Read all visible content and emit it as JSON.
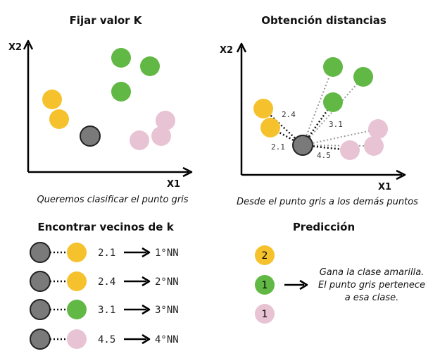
{
  "panels": {
    "fijar": {
      "title": "Fijar valor K",
      "caption": "Queremos clasificar el punto gris",
      "x_axis": "X1",
      "y_axis": "X2"
    },
    "distancias": {
      "title": "Obtención distancias",
      "caption": "Desde el punto gris a los demás puntos",
      "x_axis": "X1",
      "y_axis": "X2",
      "distance_labels": [
        "2.4",
        "2.1",
        "3.1",
        "4.5"
      ]
    },
    "vecinos": {
      "title": "Encontrar vecinos de k",
      "rows": [
        {
          "distance": "2.1",
          "rank": "1°NN",
          "color": "#f5c22e"
        },
        {
          "distance": "2.4",
          "rank": "2°NN",
          "color": "#f5c22e"
        },
        {
          "distance": "3.1",
          "rank": "3°NN",
          "color": "#62b845"
        },
        {
          "distance": "4.5",
          "rank": "4°NN",
          "color": "#e8c3d3"
        }
      ]
    },
    "prediccion": {
      "title": "Predicción",
      "counts": [
        {
          "value": "2",
          "color": "#f5c22e"
        },
        {
          "value": "1",
          "color": "#62b845"
        },
        {
          "value": "1",
          "color": "#e8c3d3"
        }
      ],
      "result_lines": [
        "Gana la clase amarilla.",
        "El punto gris pertenece",
        "a esa clase."
      ]
    }
  },
  "colors": {
    "yellow": "#f5c22e",
    "green": "#62b845",
    "pink": "#e8c3d3",
    "gray": "#7a7a7a"
  }
}
